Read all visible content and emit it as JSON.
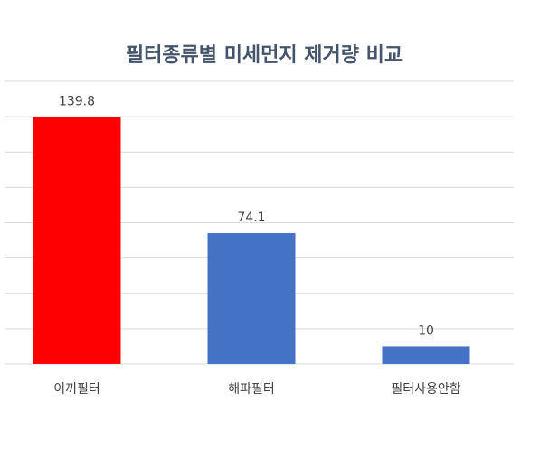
{
  "chart_data": {
    "type": "bar",
    "title": "필터종류별 미세먼지 제거량 비교",
    "categories": [
      "이끼필터",
      "해파필터",
      "필터사용안함"
    ],
    "values": [
      139.8,
      74.1,
      10
    ],
    "colors": [
      "#ff0000",
      "#4472c4",
      "#4472c4"
    ],
    "ylim": [
      0,
      160
    ],
    "yticks": [
      0,
      20,
      40,
      60,
      80,
      100,
      120,
      140,
      160
    ],
    "grid": true
  }
}
